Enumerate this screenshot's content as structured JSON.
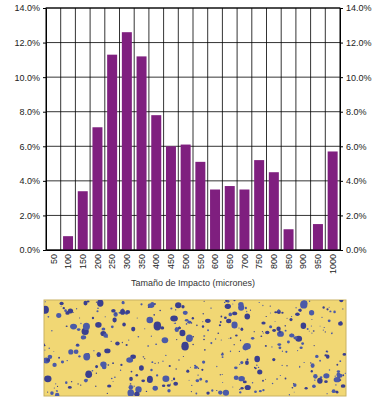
{
  "chart_data": {
    "type": "bar",
    "x_label": "Tamaño de Impacto (micrones)",
    "categories": [
      "50",
      "100",
      "150",
      "200",
      "250",
      "300",
      "350",
      "400",
      "450",
      "500",
      "550",
      "600",
      "650",
      "700",
      "750",
      "800",
      "850",
      "900",
      "950",
      "1000"
    ],
    "values": [
      0,
      0.8,
      3.4,
      7.1,
      11.3,
      12.6,
      11.2,
      7.8,
      6.0,
      6.1,
      5.1,
      3.5,
      3.7,
      3.5,
      5.2,
      4.5,
      1.2,
      0,
      1.5,
      5.7
    ],
    "color": "#7f1f7f",
    "ylim": [
      0,
      14
    ],
    "yticks": [
      {
        "value": 0,
        "label": "0.0%"
      },
      {
        "value": 2,
        "label": "2.0%"
      },
      {
        "value": 4,
        "label": "4.0%"
      },
      {
        "value": 6,
        "label": "6.0%"
      },
      {
        "value": 8,
        "label": "8.0%"
      },
      {
        "value": 10,
        "label": "10.0%"
      },
      {
        "value": 12,
        "label": "12.0%"
      },
      {
        "value": 14,
        "label": "14.0%"
      }
    ],
    "grid": true
  }
}
